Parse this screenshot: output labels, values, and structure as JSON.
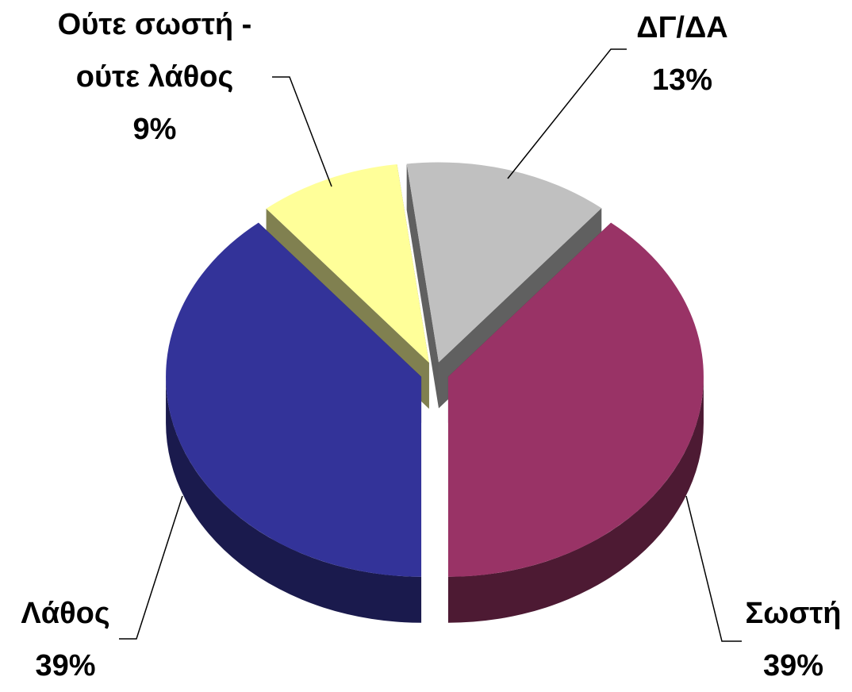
{
  "chart_data": {
    "type": "pie3d",
    "categories": [
      "Σωστή",
      "Λάθος",
      "Ούτε σωστή - ούτε λάθος",
      "ΔΓ/ΔΑ"
    ],
    "values": [
      39,
      39,
      9,
      13
    ],
    "value_labels": [
      "39%",
      "39%",
      "9%",
      "13%"
    ],
    "colors": [
      "#993366",
      "#333399",
      "#ffff99",
      "#c0c0c0"
    ],
    "side_colors": [
      "#4d1a33",
      "#1a1a4d",
      "#808050",
      "#606060"
    ]
  }
}
